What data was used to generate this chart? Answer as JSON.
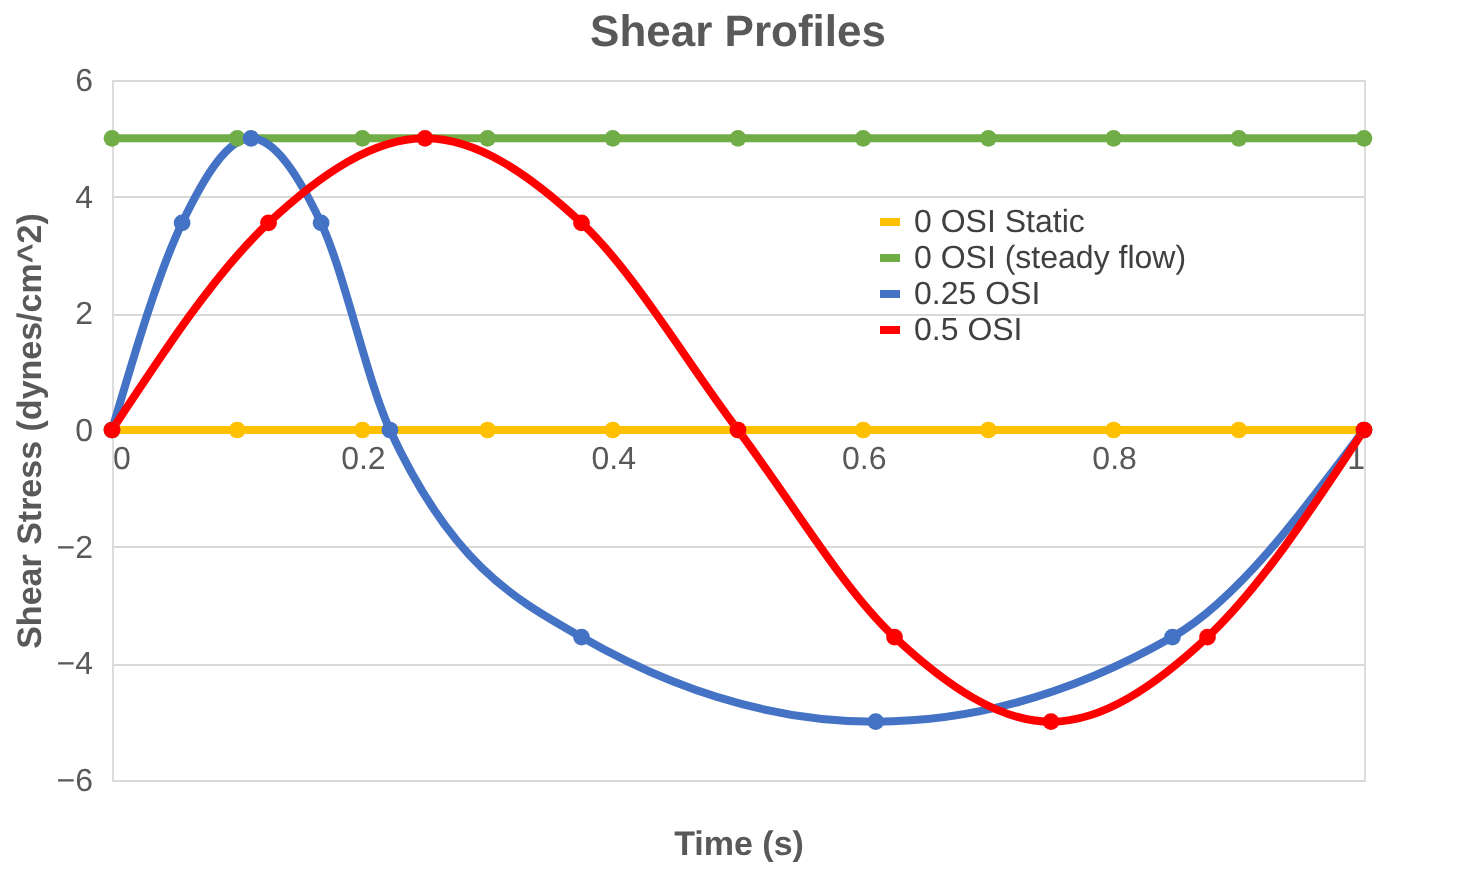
{
  "chart_data": {
    "type": "line",
    "title": "Shear Profiles",
    "xlabel": "Time (s)",
    "ylabel": "Shear Stress (dynes/cm^2)",
    "xlim": [
      0,
      1
    ],
    "xticks": [
      0,
      0.2,
      0.4,
      0.6,
      0.8,
      1
    ],
    "ylim": [
      -6,
      6
    ],
    "yticks": [
      -6,
      -4,
      -2,
      0,
      2,
      4,
      6
    ],
    "grid": "y",
    "legend": "top right",
    "marker": "circle",
    "line_style": "solid",
    "series": [
      {
        "name": "0 OSI Static",
        "color": "#ffc000",
        "x": [
          0,
          0.1,
          0.2,
          0.3,
          0.4,
          0.5,
          0.6,
          0.7,
          0.8,
          0.9,
          1
        ],
        "values": [
          0,
          0,
          0,
          0,
          0,
          0,
          0,
          0,
          0,
          0,
          0
        ]
      },
      {
        "name": "0 OSI (steady flow)",
        "color": "#70ad47",
        "x": [
          0,
          0.1,
          0.2,
          0.3,
          0.4,
          0.5,
          0.6,
          0.7,
          0.8,
          0.9,
          1
        ],
        "values": [
          5,
          5,
          5,
          5,
          5,
          5,
          5,
          5,
          5,
          5,
          5
        ]
      },
      {
        "name": "0.25 OSI",
        "color": "#4472c4",
        "x": [
          0,
          0.056,
          0.111,
          0.167,
          0.222,
          0.375,
          0.61,
          0.847,
          1
        ],
        "values": [
          0,
          3.55,
          5,
          3.55,
          0,
          -3.55,
          -5,
          -3.55,
          0
        ]
      },
      {
        "name": "0.5 OSI",
        "color": "#ff0000",
        "x": [
          0,
          0.125,
          0.25,
          0.375,
          0.5,
          0.625,
          0.75,
          0.875,
          1
        ],
        "values": [
          0,
          3.55,
          5,
          3.55,
          0,
          -3.55,
          -5,
          -3.55,
          0
        ]
      }
    ]
  }
}
